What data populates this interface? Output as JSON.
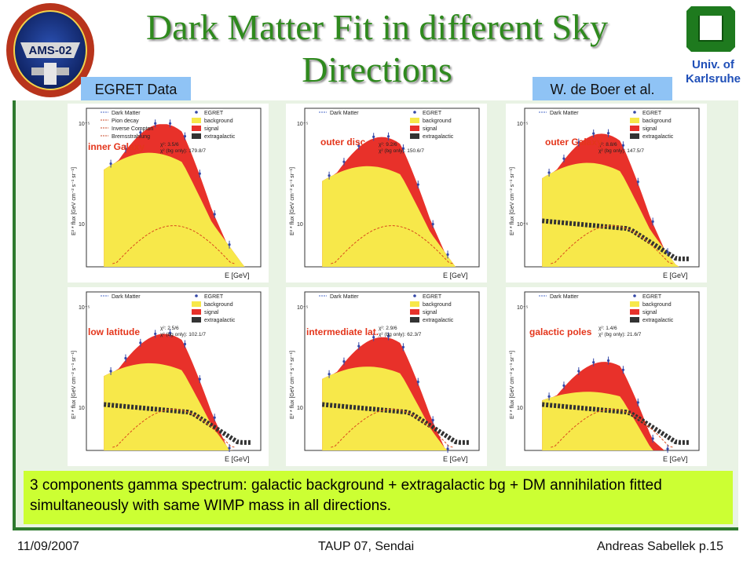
{
  "slide": {
    "title": "Dark Matter Fit in different Sky Directions",
    "tag_left": "EGRET Data",
    "tag_right": "W. de Boer et al.",
    "univ_line1": "Univ. of",
    "univ_line2": "Karlsruhe",
    "logo_text": "AMS-02",
    "note": "3 components gamma spectrum: galactic background + extragalactic bg + DM annihilation fitted simultaneously with same WIMP mass in all directions.",
    "footer": {
      "date": "11/09/2007",
      "center": "TAUP 07, Sendai",
      "right": "Andreas Sabellek p.15"
    }
  },
  "panels": [
    {
      "label": "inner Galaxy",
      "legend_left": [
        "Dark Matter",
        "Pion decay",
        "Inverse Compton",
        "Bremsstrahlung"
      ],
      "legend_right": [
        "EGRET",
        "background",
        "signal",
        "extragalactic"
      ],
      "chi": [
        "χ²: 3.5/6",
        "χ² (bg only): 179.8/7"
      ],
      "ylabel": "E² * flux [GeV cm⁻² s⁻¹ sr⁻¹]",
      "xlabel": "E [GeV]",
      "ytick_top": "10⁻⁵",
      "ytick_bot": "10",
      "extragal": false,
      "dm_peak": 0.78
    },
    {
      "label": "outer disc",
      "legend_left": [
        "Dark Matter"
      ],
      "legend_right": [
        "EGRET",
        "background",
        "signal",
        "extragalactic"
      ],
      "chi": [
        "χ²: 9.2/6",
        "χ² (bg only): 150.6/7"
      ],
      "ylabel": "E² * flux [GeV cm⁻² s⁻¹ sr⁻¹]",
      "xlabel": "E [GeV]",
      "ytick_top": "10⁻⁵",
      "ytick_bot": "10",
      "extragal": false,
      "dm_peak": 0.7
    },
    {
      "label": "outer Galaxy",
      "legend_left": [
        "Dark Matter"
      ],
      "legend_right": [
        "EGRET",
        "background",
        "signal",
        "extragalactic"
      ],
      "chi": [
        "χ²: 8.8/6",
        "χ² (bg only): 147.5/7"
      ],
      "ylabel": "E² * flux [GeV cm⁻² s⁻¹ sr⁻¹]",
      "xlabel": "E [GeV]",
      "ytick_top": "10⁻⁵",
      "ytick_bot": "10⁻⁶",
      "extragal": true,
      "dm_peak": 0.72
    },
    {
      "label": "low latitude",
      "legend_left": [
        "Dark Matter"
      ],
      "legend_right": [
        "EGRET",
        "background",
        "signal",
        "extragalactic"
      ],
      "chi": [
        "χ²: 2.5/6",
        "χ² (bg only): 102.1/7"
      ],
      "ylabel": "E² * flux [GeV cm⁻² s⁻¹ sr⁻¹]",
      "xlabel": "E [GeV]",
      "ytick_top": "10⁻⁵",
      "ytick_bot": "10",
      "extragal": true,
      "dm_peak": 0.62
    },
    {
      "label": "intermediate lat.",
      "legend_left": [
        "Dark Matter"
      ],
      "legend_right": [
        "EGRET",
        "background",
        "signal",
        "extragalactic"
      ],
      "chi": [
        "χ²: 2.9/6",
        "χ² (bg only): 62.3/7"
      ],
      "ylabel": "E² * flux [GeV cm⁻² s⁻¹ sr⁻¹]",
      "xlabel": "E [GeV]",
      "ytick_top": "10⁻⁵",
      "ytick_bot": "10",
      "extragal": true,
      "dm_peak": 0.6
    },
    {
      "label": "galactic poles",
      "legend_left": [
        "Dark Matter"
      ],
      "legend_right": [
        "EGRET",
        "background",
        "signal",
        "extragalactic"
      ],
      "chi": [
        "χ²: 1.4/6",
        "χ² (bg only): 21.6/7"
      ],
      "ylabel": "E² * flux [GeV cm⁻² s⁻¹ sr⁻¹]",
      "xlabel": "E [GeV]",
      "ytick_top": "10⁻⁵",
      "ytick_bot": "10",
      "extragal": true,
      "dm_peak": 0.45
    }
  ],
  "colors": {
    "title": "#2f8a1e",
    "tag": "#8fc3f5",
    "frame": "#2e7a2e",
    "note": "#ccff33",
    "signal": "#e8312a",
    "background": "#f7e84a",
    "label": "#e4361c"
  }
}
